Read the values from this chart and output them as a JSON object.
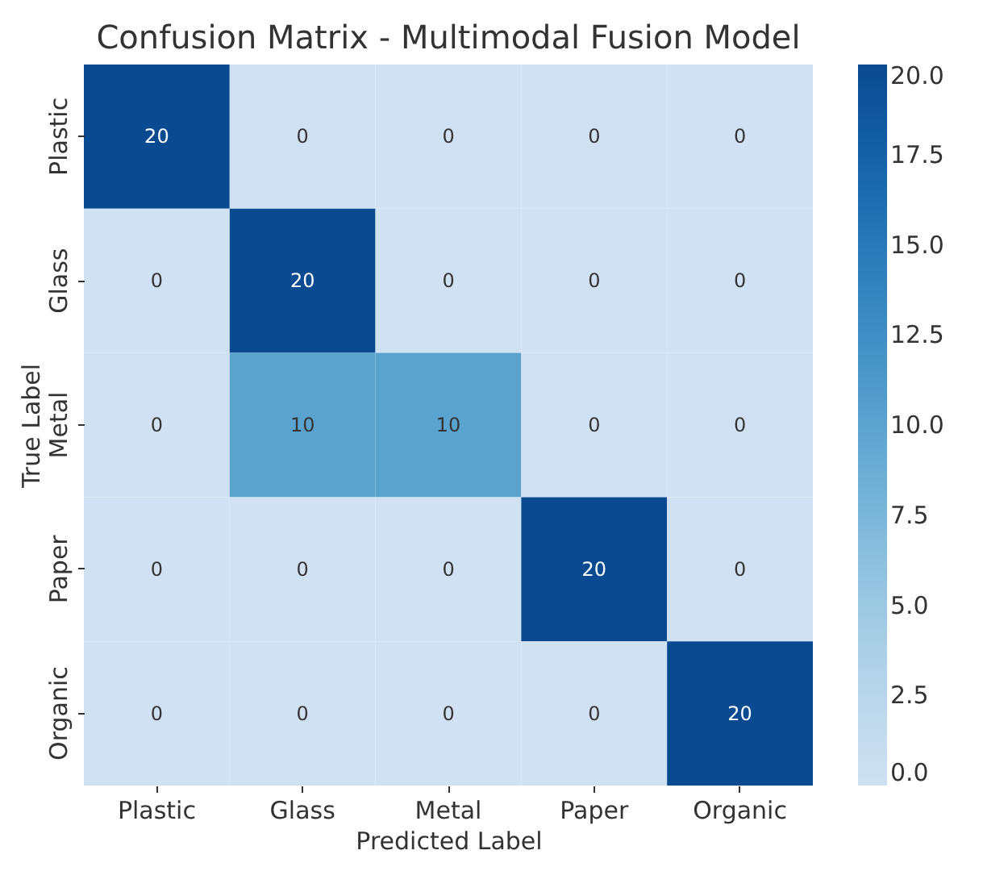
{
  "chart_data": {
    "type": "heatmap",
    "title": "Confusion Matrix - Multimodal Fusion Model",
    "xlabel": "Predicted Label",
    "ylabel": "True Label",
    "categories": [
      "Plastic",
      "Glass",
      "Metal",
      "Paper",
      "Organic"
    ],
    "y_categories": [
      "Plastic",
      "Glass",
      "Metal",
      "Paper",
      "Organic"
    ],
    "cells": [
      [
        20,
        0,
        0,
        0,
        0
      ],
      [
        0,
        20,
        0,
        0,
        0
      ],
      [
        0,
        10,
        10,
        0,
        0
      ],
      [
        0,
        0,
        0,
        20,
        0
      ],
      [
        0,
        0,
        0,
        0,
        20
      ]
    ],
    "data_labels": true,
    "clim": [
      0,
      20
    ],
    "cticks": [
      {
        "value": 0,
        "label": "0.0"
      },
      {
        "value": 2.5,
        "label": "2.5"
      },
      {
        "value": 5,
        "label": "5.0"
      },
      {
        "value": 7.5,
        "label": "7.5"
      },
      {
        "value": 10,
        "label": "10.0"
      },
      {
        "value": 12.5,
        "label": "12.5"
      },
      {
        "value": 15,
        "label": "15.0"
      },
      {
        "value": 17.5,
        "label": "17.5"
      },
      {
        "value": 20,
        "label": "20.0"
      }
    ]
  }
}
